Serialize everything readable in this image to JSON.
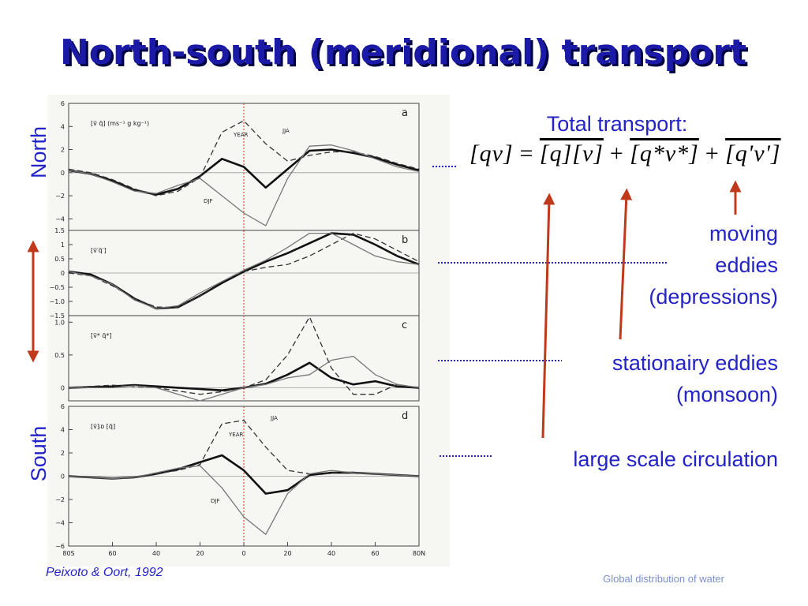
{
  "title": "North-south (meridional) transport",
  "side_labels": {
    "north": "North",
    "south": "South"
  },
  "total_transport": "Total transport:",
  "equation": [
    "[qv]",
    "=",
    "[q][v]",
    "+",
    "[q*v*]",
    "+",
    "[q'v']"
  ],
  "notes": {
    "moving_eddies": [
      "moving",
      "eddies",
      "(depressions)"
    ],
    "stationary_eddies": [
      "stationairy eddies",
      "(monsoon)"
    ],
    "circulation": "large scale circulation"
  },
  "citation": "Peixoto & Oort, 1992",
  "footer": "Global distribution of water",
  "chart_data": [
    {
      "type": "line",
      "panel": "a",
      "label": "[v̄ q̄]  (ms⁻¹ g kg⁻¹)",
      "x": [
        -80,
        -70,
        -60,
        -50,
        -40,
        -30,
        -20,
        -10,
        0,
        10,
        20,
        30,
        40,
        50,
        60,
        70,
        80
      ],
      "ylim": [
        -5,
        6
      ],
      "yticks": [
        {
          "value": -4,
          "label": "−4"
        },
        {
          "value": -2,
          "label": "−2"
        },
        0,
        2,
        4,
        6
      ],
      "series": [
        {
          "name": "YEAR",
          "color": "#111111",
          "line_width": 2.6,
          "dashed": false,
          "values": [
            0.2,
            -0.1,
            -0.7,
            -1.5,
            -1.9,
            -1.4,
            -0.3,
            1.2,
            0.5,
            -1.3,
            0.3,
            1.9,
            2.0,
            1.7,
            1.3,
            0.7,
            0.2
          ]
        },
        {
          "name": "JJA",
          "color": "#333333",
          "line_width": 1.3,
          "dashed": true,
          "values": [
            0.3,
            0,
            -0.6,
            -1.4,
            -2.0,
            -1.6,
            -0.4,
            3.5,
            4.5,
            2.5,
            1.0,
            1.5,
            1.8,
            1.8,
            1.4,
            0.8,
            0.3
          ]
        },
        {
          "name": "DJF",
          "color": "#777777",
          "line_width": 1.3,
          "dashed": false,
          "values": [
            0.2,
            -0.1,
            -0.8,
            -1.6,
            -1.8,
            -1.1,
            -0.5,
            -2.0,
            -3.5,
            -4.6,
            -0.5,
            2.3,
            2.4,
            1.9,
            1.2,
            0.5,
            0.1
          ]
        }
      ]
    },
    {
      "type": "line",
      "panel": "b",
      "label": "[v̄′q̄′]",
      "x": [
        -80,
        -70,
        -60,
        -50,
        -40,
        -30,
        -20,
        -10,
        0,
        10,
        20,
        30,
        40,
        50,
        60,
        70,
        80
      ],
      "ylim": [
        -1.5,
        1.5
      ],
      "yticks": [
        {
          "value": -1.5,
          "label": "−1.5"
        },
        {
          "value": -1,
          "label": "−1.0"
        },
        {
          "value": -0.5,
          "label": "−0.5"
        },
        0,
        0.5,
        1,
        1.5
      ],
      "series": [
        {
          "color": "#111111",
          "line_width": 2.6,
          "dashed": false,
          "values": [
            0.05,
            -0.05,
            -0.4,
            -0.9,
            -1.25,
            -1.2,
            -0.8,
            -0.35,
            0.05,
            0.4,
            0.7,
            1.05,
            1.4,
            1.35,
            1.0,
            0.6,
            0.3
          ]
        },
        {
          "color": "#333333",
          "line_width": 1.3,
          "dashed": true,
          "values": [
            0,
            -0.1,
            -0.45,
            -0.9,
            -1.2,
            -1.2,
            -0.8,
            -0.3,
            0.05,
            0.2,
            0.3,
            0.6,
            1.0,
            1.4,
            1.2,
            0.8,
            0.4
          ]
        },
        {
          "color": "#777777",
          "line_width": 1.3,
          "dashed": false,
          "values": [
            0.05,
            -0.1,
            -0.4,
            -0.95,
            -1.25,
            -1.15,
            -0.7,
            -0.3,
            0.1,
            0.45,
            0.9,
            1.4,
            1.4,
            1.0,
            0.6,
            0.4,
            0.3
          ]
        }
      ]
    },
    {
      "type": "line",
      "panel": "c",
      "label": "[v̄* q̄*]",
      "x": [
        -80,
        -70,
        -60,
        -50,
        -40,
        -30,
        -20,
        -10,
        0,
        10,
        20,
        30,
        40,
        50,
        60,
        70,
        80
      ],
      "ylim": [
        -0.2,
        1.1
      ],
      "yticks": [
        0,
        0.5,
        {
          "value": 1,
          "label": "1.0"
        }
      ],
      "series": [
        {
          "color": "#111111",
          "line_width": 2.6,
          "dashed": false,
          "values": [
            0,
            0.01,
            0.02,
            0.04,
            0.02,
            0,
            -0.02,
            -0.04,
            0,
            0.06,
            0.2,
            0.38,
            0.15,
            0.05,
            0.1,
            0.02,
            0
          ]
        },
        {
          "color": "#333333",
          "line_width": 1.3,
          "dashed": true,
          "values": [
            0,
            0.02,
            0.04,
            0.02,
            0,
            -0.05,
            -0.1,
            -0.06,
            0,
            0.12,
            0.5,
            1.08,
            0.3,
            -0.1,
            -0.1,
            0.05,
            0
          ]
        },
        {
          "color": "#777777",
          "line_width": 1.3,
          "dashed": false,
          "values": [
            0,
            0,
            0,
            0.03,
            0,
            -0.1,
            -0.2,
            -0.1,
            0,
            0.05,
            0.15,
            0.2,
            0.42,
            0.48,
            0.2,
            0.05,
            0
          ]
        }
      ]
    },
    {
      "type": "line",
      "panel": "d",
      "label": "[v̄]ᵢᴅ [q̄]",
      "x": [
        -80,
        -70,
        -60,
        -50,
        -40,
        -30,
        -20,
        -10,
        0,
        10,
        20,
        30,
        40,
        50,
        60,
        70,
        80
      ],
      "ylim": [
        -6,
        6
      ],
      "yticks": [
        {
          "value": -6,
          "label": "−6"
        },
        {
          "value": -4,
          "label": "−4"
        },
        {
          "value": -2,
          "label": "−2"
        },
        0,
        2,
        4,
        6
      ],
      "xlim": [
        -80,
        80
      ],
      "xticks": [
        {
          "value": -80,
          "label": "80S"
        },
        {
          "value": -60,
          "label": "60"
        },
        {
          "value": -40,
          "label": "40"
        },
        {
          "value": -20,
          "label": "20"
        },
        0,
        {
          "value": 20,
          "label": "20"
        },
        40,
        60,
        {
          "value": 80,
          "label": "80N"
        }
      ],
      "series": [
        {
          "name": "YEAR",
          "color": "#111111",
          "line_width": 2.6,
          "dashed": false,
          "values": [
            0,
            -0.1,
            -0.2,
            -0.1,
            0.2,
            0.6,
            1.2,
            1.8,
            0.5,
            -1.5,
            -1.2,
            0.1,
            0.3,
            0.3,
            0.2,
            0.1,
            0
          ]
        },
        {
          "name": "JJA",
          "color": "#333333",
          "line_width": 1.3,
          "dashed": true,
          "values": [
            0,
            -0.1,
            -0.2,
            -0.1,
            0.2,
            0.5,
            1.0,
            4.5,
            4.8,
            2.5,
            0.5,
            0.2,
            0.3,
            0.3,
            0.2,
            0.1,
            0
          ]
        },
        {
          "name": "DJF",
          "color": "#777777",
          "line_width": 1.3,
          "dashed": false,
          "values": [
            0,
            -0.1,
            -0.2,
            -0.1,
            0.3,
            0.7,
            0.9,
            -1.0,
            -3.5,
            -5.0,
            -1.5,
            0.2,
            0.5,
            0.3,
            0.2,
            0.1,
            0
          ]
        }
      ]
    }
  ]
}
